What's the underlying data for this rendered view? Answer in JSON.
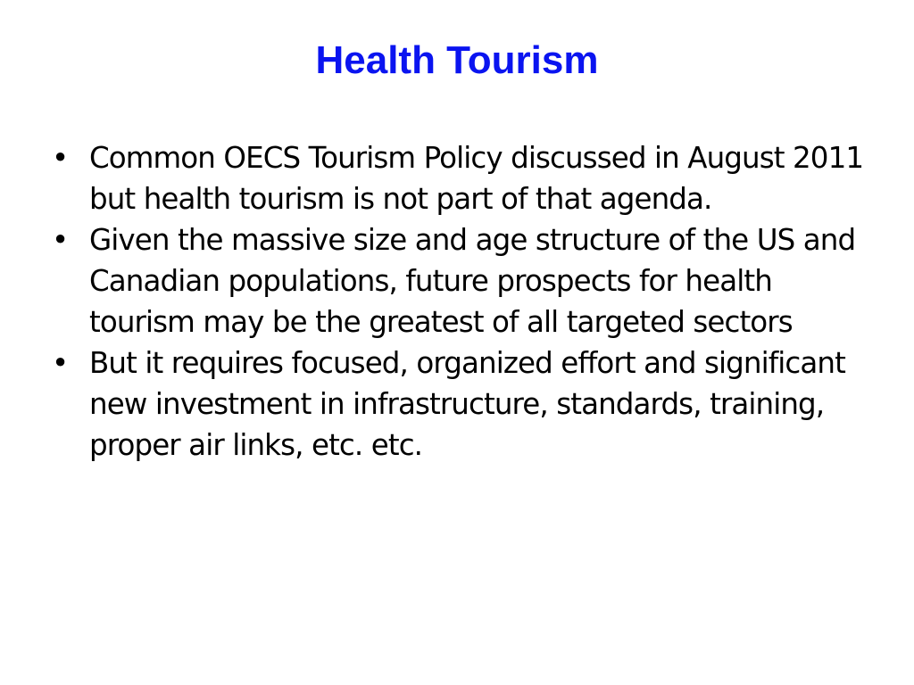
{
  "slide": {
    "title": "Health Tourism",
    "bullets": [
      "Common OECS Tourism Policy discussed in August 2011 but health tourism is not part of that agenda.",
      "Given the massive size and age structure of the US and Canadian populations, future prospects for health tourism may be the greatest of all targeted sectors",
      "But it requires focused, organized effort and significant new investment in infrastructure, standards, training, proper air links, etc. etc."
    ],
    "bullet_glyph": "•",
    "title_color": "#0a14f0"
  }
}
